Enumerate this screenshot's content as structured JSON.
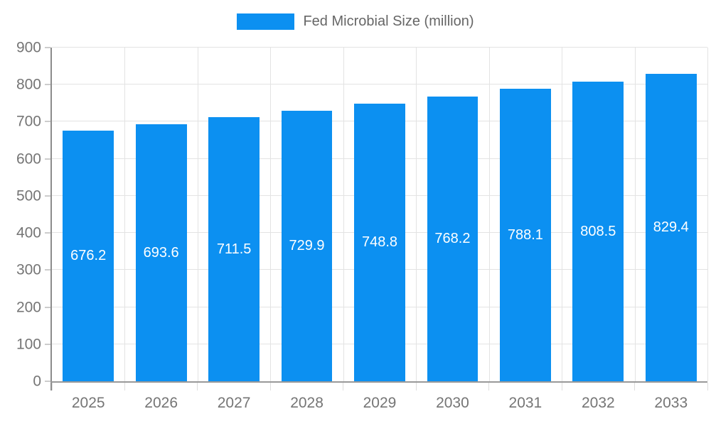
{
  "legend": {
    "items": [
      {
        "label": "Fed Microbial Size (million)"
      }
    ]
  },
  "chart_data": {
    "type": "bar",
    "title": "Fed Microbial Size (million)",
    "categories": [
      "2025",
      "2026",
      "2027",
      "2028",
      "2029",
      "2030",
      "2031",
      "2032",
      "2033"
    ],
    "series": [
      {
        "name": "Fed Microbial Size (million)",
        "values": [
          676.2,
          693.6,
          711.5,
          729.9,
          748.8,
          768.2,
          788.1,
          808.5,
          829.4
        ]
      }
    ],
    "xlabel": "",
    "ylabel": "",
    "ylim": [
      0,
      900
    ],
    "ytick_step": 100,
    "grid": true,
    "legend_position": "top-center",
    "value_label_position": "inside-center",
    "bar_width_fraction": 0.7
  },
  "colors": {
    "bar": "#0C90F1",
    "grid": "#e3e3e3",
    "axis": "#999999",
    "tick_text": "#757575",
    "legend_text": "#666666",
    "value_label_text": "#ffffff",
    "background": "#ffffff"
  }
}
